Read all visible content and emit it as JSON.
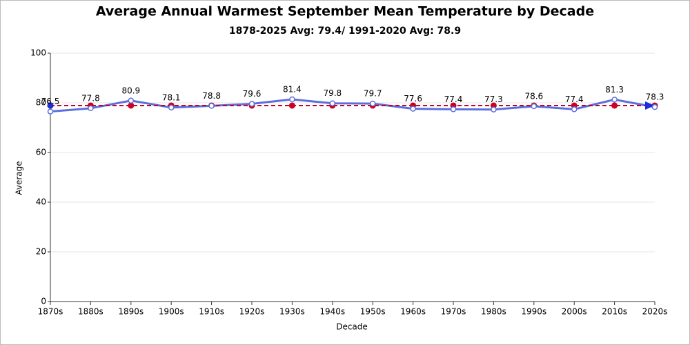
{
  "chart_data": {
    "type": "line",
    "title": "Average Annual Warmest September Mean Temperature by Decade",
    "subtitle": "1878-2025 Avg: 79.4/ 1991-2020 Avg: 78.9",
    "x_label": "Decade",
    "y_label": "Average",
    "categories": [
      "1870s",
      "1880s",
      "1890s",
      "1900s",
      "1910s",
      "1920s",
      "1930s",
      "1940s",
      "1950s",
      "1960s",
      "1970s",
      "1980s",
      "1990s",
      "2000s",
      "2010s",
      "2020s"
    ],
    "values": [
      76.5,
      77.8,
      80.9,
      78.1,
      78.8,
      79.6,
      81.4,
      79.8,
      79.7,
      77.6,
      77.4,
      77.3,
      78.6,
      77.4,
      81.3,
      78.3
    ],
    "color": "#5a6fdc",
    "reference_value": 78.9,
    "reference_color": "#cc0022",
    "ylim": [
      0,
      100
    ],
    "yticks": [
      0,
      20,
      40,
      60,
      80,
      100
    ],
    "grid": true
  }
}
